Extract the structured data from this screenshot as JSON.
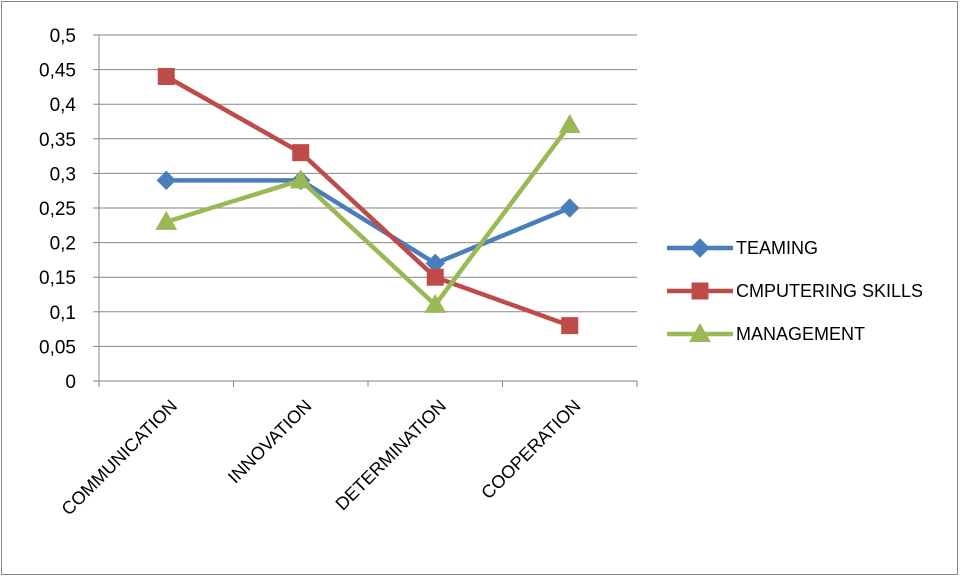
{
  "chart_data": {
    "type": "line",
    "title": "",
    "xlabel": "",
    "ylabel": "",
    "categories": [
      "COMMUNICATION",
      "INNOVATION",
      "DETERMINATION",
      "COOPERATION"
    ],
    "ylim": [
      0,
      0.5
    ],
    "y_ticks": [
      "0",
      "0,05",
      "0,1",
      "0,15",
      "0,2",
      "0,25",
      "0,3",
      "0,35",
      "0,4",
      "0,45",
      "0,5"
    ],
    "grid": true,
    "legend_position": "right",
    "series": [
      {
        "name": "TEAMING",
        "values": [
          0.29,
          0.29,
          0.17,
          0.25
        ],
        "color": "#4A7EBB",
        "marker": "diamond"
      },
      {
        "name": "CMPUTERING SKILLS",
        "values": [
          0.44,
          0.33,
          0.15,
          0.08
        ],
        "color": "#BE4B48",
        "marker": "square"
      },
      {
        "name": "MANAGEMENT",
        "values": [
          0.23,
          0.29,
          0.11,
          0.37
        ],
        "color": "#98B954",
        "marker": "triangle"
      }
    ]
  }
}
